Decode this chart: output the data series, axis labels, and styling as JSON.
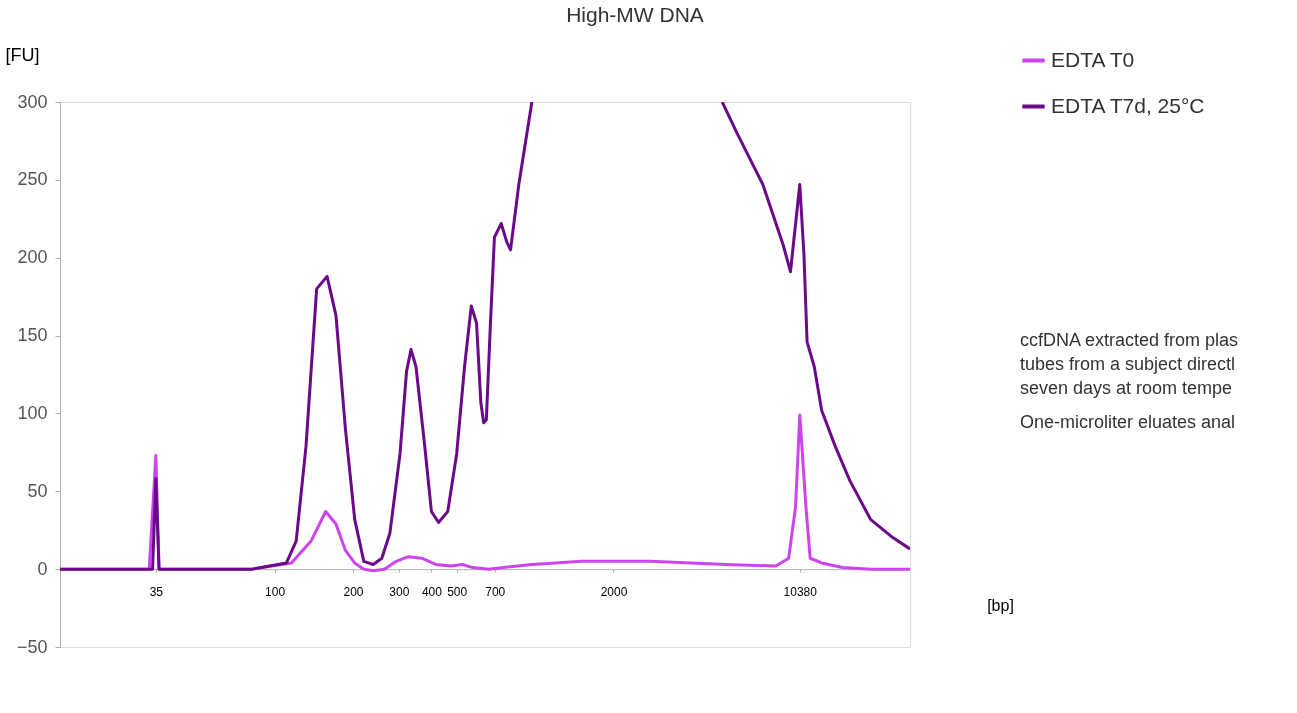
{
  "chart_data": {
    "type": "line",
    "title": "High-MW DNA",
    "ylabel": "[FU]",
    "xlabel": "[bp]",
    "xlim": [
      15,
      27500
    ],
    "ylim": [
      -50,
      300
    ],
    "yticks": [
      -50,
      0,
      50,
      100,
      150,
      200,
      250,
      300
    ],
    "xticks": [
      35,
      100,
      200,
      300,
      400,
      500,
      700,
      2000,
      10380
    ],
    "log": "x",
    "grid": false,
    "legend": "top right",
    "marker": "none",
    "line_style": "solid",
    "series": [
      {
        "name": "EDTA T0",
        "color": "#cc44ee",
        "x": [
          15,
          33,
          35,
          36,
          82,
          116,
          138,
          157,
          172,
          187,
          203,
          220,
          239,
          264,
          293,
          326,
          367,
          416,
          475,
          525,
          577,
          664,
          972,
          1510,
          2770,
          5410,
          8400,
          9410,
          10000,
          10380,
          10960,
          11380,
          12590,
          15140,
          19400,
          27500
        ],
        "values": [
          0,
          0,
          73,
          0,
          0,
          4,
          18,
          37,
          29,
          12,
          4,
          0,
          -1,
          0,
          5,
          8,
          7,
          3,
          2,
          3,
          1,
          0,
          3,
          5,
          5,
          3,
          2,
          7,
          40,
          99,
          40,
          7,
          4,
          1,
          0,
          0
        ]
      },
      {
        "name": "EDTA T7d, 25°C",
        "color": "#6a0a8a",
        "x": [
          15,
          31,
          34,
          35,
          36,
          37,
          82,
          111,
          121,
          132,
          145,
          159,
          172,
          187,
          203,
          220,
          239,
          258,
          277,
          303,
          321,
          334,
          349,
          377,
          400,
          426,
          462,
          500,
          536,
          569,
          596,
          619,
          635,
          650,
          674,
          698,
          741,
          779,
          805,
          866,
          972,
          1800,
          5230,
          5960,
          7490,
          8970,
          9560,
          10380,
          10770,
          11070,
          11800,
          12590,
          14190,
          16140,
          19400,
          23300,
          27500
        ],
        "values": [
          0,
          0,
          0,
          58,
          0,
          0,
          0,
          4,
          18,
          79,
          180,
          188,
          163,
          90,
          32,
          5,
          3,
          7,
          23,
          74,
          127,
          141,
          130,
          79,
          37,
          30,
          37,
          74,
          130,
          169,
          158,
          107,
          94,
          96,
          158,
          213,
          222,
          210,
          205,
          247,
          300,
          null,
          300,
          280,
          247,
          208,
          191,
          247,
          202,
          146,
          130,
          102,
          79,
          57,
          32,
          21,
          13
        ]
      }
    ],
    "annotations": [
      "ccfDNA extracted from plas\ntubes from a subject directl\nseven days at room tempe",
      "One-microliter eluates anal"
    ]
  }
}
